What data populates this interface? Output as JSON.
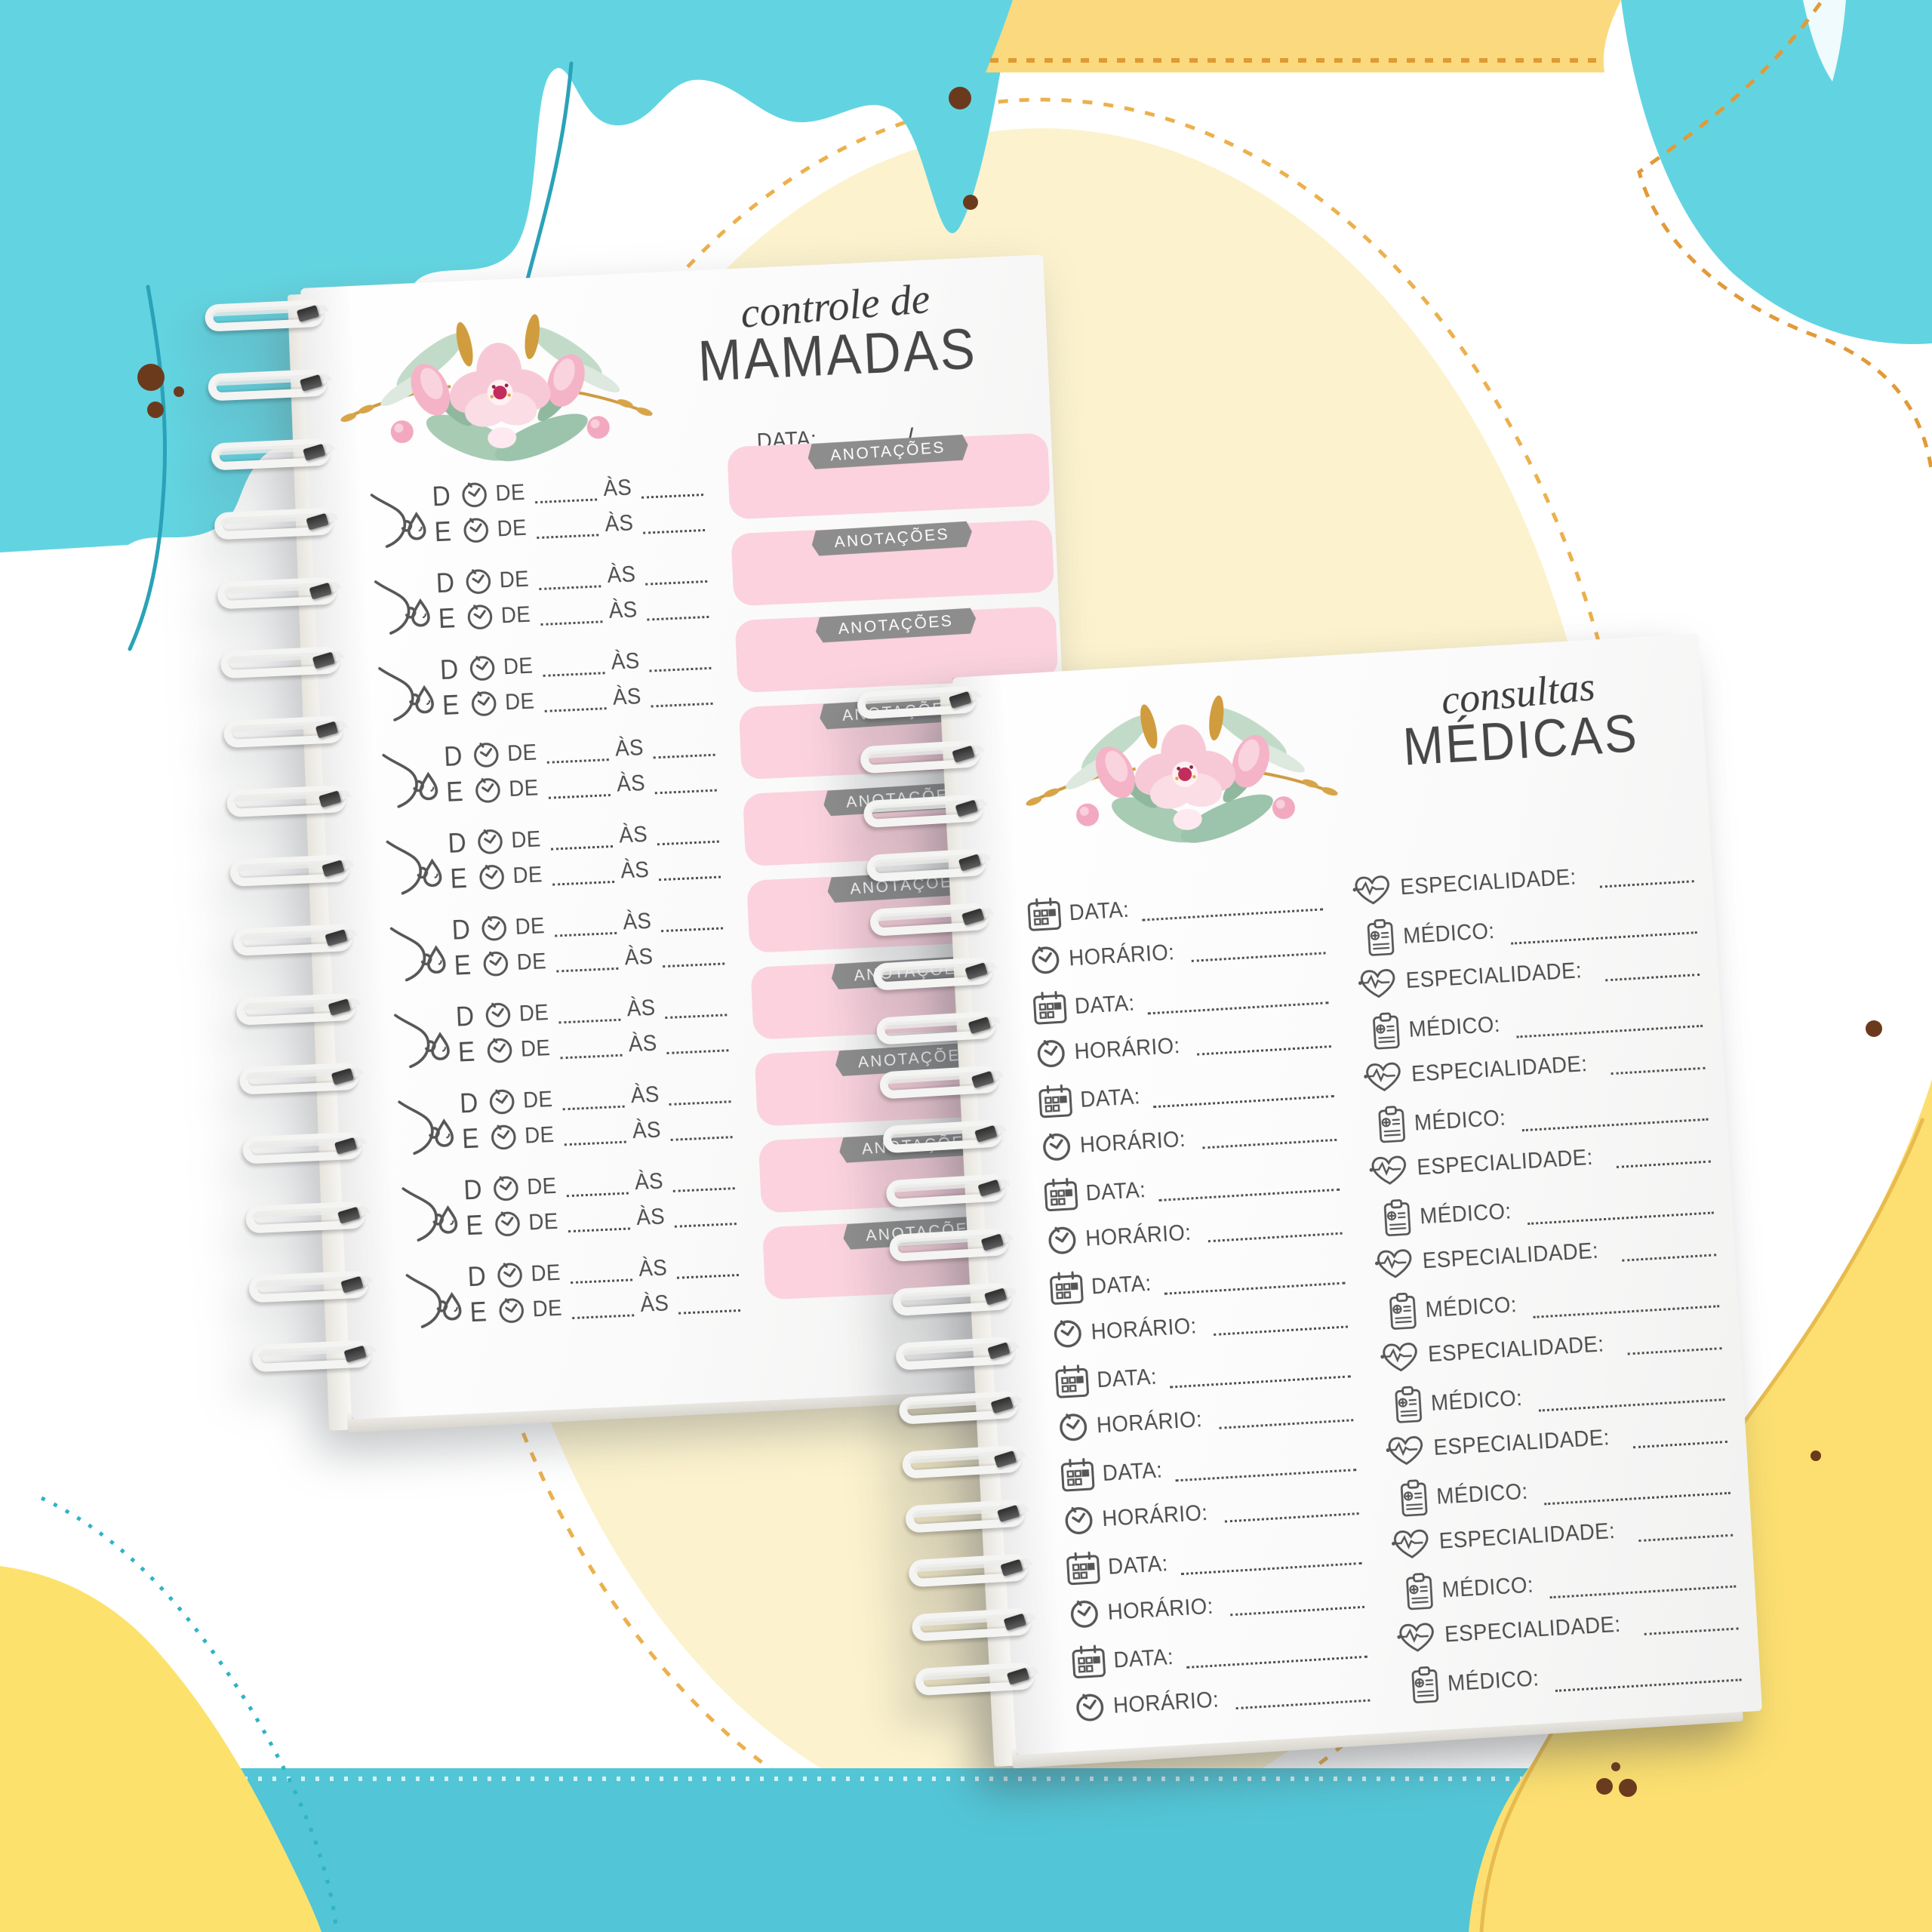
{
  "left_notebook": {
    "title_line1": "controle de",
    "title_line2": "MAMADAS",
    "date_label": "DATA:",
    "date_separator": "/",
    "feeding_rows": {
      "count": 10,
      "breast_right_label": "D",
      "breast_left_label": "E",
      "from_label": "DE",
      "to_label": "ÀS",
      "notes_banner": "ANOTAÇÕES"
    }
  },
  "right_notebook": {
    "title_line1": "consultas",
    "title_line2": "MÉDICAS",
    "entry_rows": {
      "count": 9,
      "date_label": "DATA:",
      "time_label": "HORÁRIO:",
      "specialty_label": "ESPECIALIDADE:",
      "doctor_label": "MÉDICO:"
    }
  },
  "icons": {
    "breast": "breast-feeding-icon",
    "drop": "milk-drop-icon",
    "clock": "clock-icon",
    "calendar": "calendar-icon",
    "heartbeat": "heartbeat-icon",
    "clipboard": "clipboard-icon"
  },
  "colors": {
    "turquoise": "#62d4e1",
    "turquoise_band": "#52c5d6",
    "teal_line": "#2aa2b8",
    "teal_dots": "#2fb3c7",
    "yellow_band": "#fbd97e",
    "yellow_blob": "#fce26d",
    "yellow_petal": "#fcdf70",
    "petal_outline": "#e8bb4e",
    "cream_circle": "#fcf2cd",
    "orange_dash": "#e29a38",
    "pink_box": "#fbd2de",
    "banner_gray": "#8d8d8d",
    "ink": "#4e4e4e",
    "brown_dot": "#6b3a1d"
  }
}
